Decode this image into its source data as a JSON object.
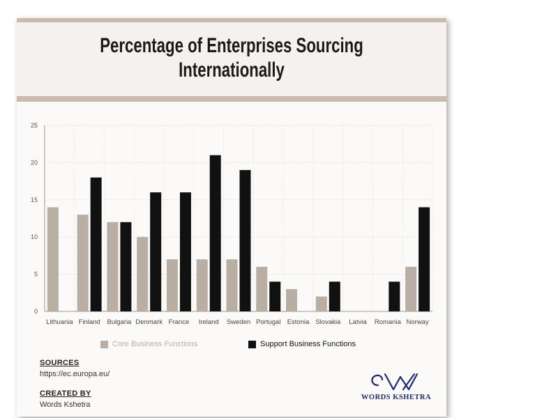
{
  "title": "Percentage of Enterprises Sourcing Internationally",
  "colors": {
    "core": "#b8aea3",
    "support": "#111111",
    "rule": "#c9bbad",
    "brand": "#1b2a6b"
  },
  "chart_data": {
    "type": "bar",
    "title": "Percentage of Enterprises Sourcing Internationally",
    "xlabel": "",
    "ylabel": "",
    "ylim": [
      0,
      25
    ],
    "yticks": [
      0,
      5,
      10,
      15,
      20,
      25
    ],
    "grid": true,
    "legend_position": "bottom",
    "categories": [
      "Lithuania",
      "Finland",
      "Bulgaria",
      "Denmark",
      "France",
      "Ireland",
      "Sweden",
      "Portugal",
      "Estonia",
      "Slovakia",
      "Latvia",
      "Romania",
      "Norway"
    ],
    "series": [
      {
        "name": "Core Business Functions",
        "values": [
          14,
          13,
          12,
          10,
          7,
          7,
          7,
          6,
          3,
          2,
          0,
          0,
          6
        ]
      },
      {
        "name": "Support Business Functions",
        "values": [
          0,
          18,
          12,
          16,
          16,
          21,
          19,
          4,
          0,
          4,
          0,
          4,
          14
        ]
      }
    ]
  },
  "footer": {
    "sources_heading": "SOURCES",
    "sources_url": "https://ec.europa.eu/",
    "created_heading": "CREATED BY",
    "created_by": "Words Kshetra"
  },
  "brand": {
    "name": "WORDS KSHETRA"
  }
}
